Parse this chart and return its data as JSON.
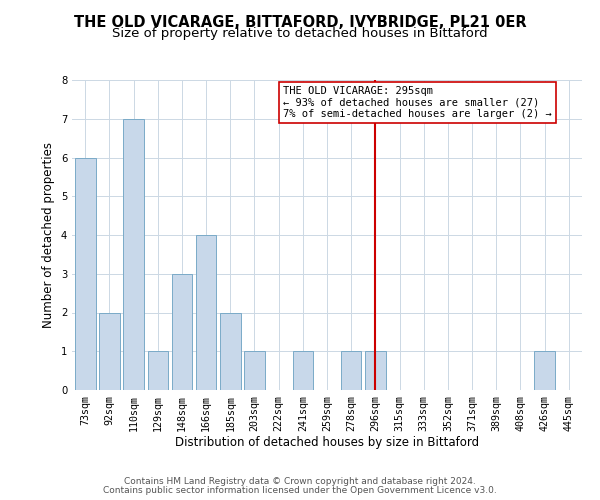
{
  "title": "THE OLD VICARAGE, BITTAFORD, IVYBRIDGE, PL21 0ER",
  "subtitle": "Size of property relative to detached houses in Bittaford",
  "xlabel": "Distribution of detached houses by size in Bittaford",
  "ylabel": "Number of detached properties",
  "bar_labels": [
    "73sqm",
    "92sqm",
    "110sqm",
    "129sqm",
    "148sqm",
    "166sqm",
    "185sqm",
    "203sqm",
    "222sqm",
    "241sqm",
    "259sqm",
    "278sqm",
    "296sqm",
    "315sqm",
    "333sqm",
    "352sqm",
    "371sqm",
    "389sqm",
    "408sqm",
    "426sqm",
    "445sqm"
  ],
  "bar_values": [
    6,
    2,
    7,
    1,
    3,
    4,
    2,
    1,
    0,
    1,
    0,
    1,
    1,
    0,
    0,
    0,
    0,
    0,
    0,
    1,
    0
  ],
  "bar_color": "#c8d8ea",
  "bar_edge_color": "#7aaac8",
  "reference_line_x_label": "296sqm",
  "reference_line_color": "#cc0000",
  "annotation_title": "THE OLD VICARAGE: 295sqm",
  "annotation_line1": "← 93% of detached houses are smaller (27)",
  "annotation_line2": "7% of semi-detached houses are larger (2) →",
  "ylim": [
    0,
    8
  ],
  "yticks": [
    0,
    1,
    2,
    3,
    4,
    5,
    6,
    7,
    8
  ],
  "footnote1": "Contains HM Land Registry data © Crown copyright and database right 2024.",
  "footnote2": "Contains public sector information licensed under the Open Government Licence v3.0.",
  "bg_color": "#ffffff",
  "grid_color": "#ccd8e4",
  "title_fontsize": 10.5,
  "subtitle_fontsize": 9.5,
  "axis_label_fontsize": 8.5,
  "tick_fontsize": 7.2,
  "footnote_fontsize": 6.5
}
